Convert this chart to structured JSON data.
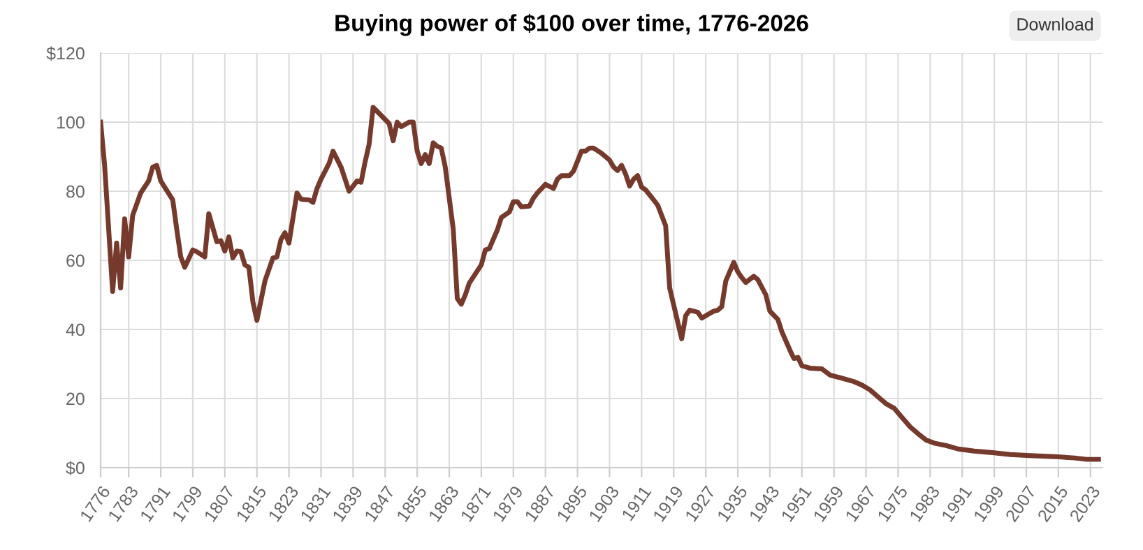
{
  "chart_data": {
    "type": "line",
    "title": "Buying power of $100 over time, 1776-2026",
    "annotations": [
      "Download"
    ],
    "x": [
      1776,
      1777,
      1779,
      1780,
      1781,
      1782,
      1783,
      1784,
      1786,
      1788,
      1789,
      1790,
      1791,
      1794,
      1795,
      1796,
      1797,
      1799,
      1800,
      1802,
      1803,
      1805,
      1806,
      1807,
      1808,
      1809,
      1810,
      1811,
      1812,
      1813,
      1814,
      1815,
      1817,
      1819,
      1820,
      1821,
      1822,
      1823,
      1825,
      1826,
      1828,
      1829,
      1830,
      1831,
      1833,
      1834,
      1836,
      1838,
      1840,
      1841,
      1842,
      1843,
      1844,
      1848,
      1849,
      1850,
      1851,
      1853,
      1854,
      1855,
      1856,
      1857,
      1858,
      1859,
      1860,
      1861,
      1862,
      1864,
      1865,
      1866,
      1867,
      1868,
      1871,
      1872,
      1873,
      1875,
      1876,
      1878,
      1879,
      1880,
      1881,
      1883,
      1884,
      1885,
      1887,
      1889,
      1890,
      1891,
      1893,
      1894,
      1896,
      1897,
      1898,
      1899,
      1901,
      1903,
      1904,
      1905,
      1906,
      1907,
      1908,
      1909,
      1910,
      1911,
      1912,
      1914,
      1915,
      1917,
      1918,
      1921,
      1922,
      1923,
      1925,
      1926,
      1929,
      1930,
      1931,
      1932,
      1934,
      1935,
      1936,
      1937,
      1939,
      1940,
      1942,
      1943,
      1945,
      1946,
      1948,
      1949,
      1950,
      1951,
      1953,
      1956,
      1958,
      1961,
      1964,
      1966,
      1968,
      1970,
      1972,
      1974,
      1976,
      1978,
      1980,
      1982,
      1984,
      1987,
      1990,
      1994,
      1999,
      2003,
      2008,
      2014,
      2019,
      2022,
      2025
    ],
    "series": [
      {
        "color": "#763a2d",
        "values": [
          100,
          87.5,
          51,
          65,
          52,
          72,
          61,
          73,
          79.5,
          83,
          87,
          87.5,
          83,
          77.5,
          69,
          61,
          58,
          63,
          62.5,
          61,
          73.5,
          65.4,
          65.7,
          62.7,
          66.8,
          60.7,
          62.7,
          62.5,
          58.7,
          58,
          48,
          42.6,
          54,
          60.7,
          61,
          66,
          68,
          65,
          79.5,
          77.7,
          77.5,
          76.8,
          80.8,
          83.5,
          88,
          91.6,
          87,
          80,
          83,
          82.6,
          88.5,
          93.6,
          104.3,
          99.6,
          94.6,
          100,
          98.7,
          100,
          100,
          91.6,
          88,
          90.6,
          88,
          94,
          93,
          92.5,
          87,
          69,
          49,
          47.3,
          50,
          53.4,
          58.7,
          63,
          63.4,
          68.8,
          72.4,
          74,
          77,
          77,
          75.5,
          75.7,
          78,
          79.5,
          82,
          80.8,
          83.5,
          84.5,
          84.5,
          85.8,
          91.6,
          91.6,
          92.5,
          92.5,
          91,
          89,
          87,
          86,
          87.5,
          85,
          81.5,
          83.5,
          84.5,
          81.2,
          80.4,
          77.5,
          76,
          70,
          52,
          37.3,
          44,
          45.6,
          45,
          43.3,
          45.3,
          45.6,
          46.6,
          54,
          59.4,
          56.7,
          55,
          53.6,
          55.4,
          54.4,
          50,
          45.3,
          42.9,
          39.3,
          34,
          31.6,
          31.9,
          29.5,
          28.8,
          28.6,
          26.8,
          25.9,
          24.9,
          23.9,
          22.5,
          20.5,
          18.5,
          17.2,
          14.5,
          11.8,
          9.8,
          8,
          7.1,
          6.4,
          5.4,
          4.8,
          4.3,
          3.8,
          3.5,
          3.2,
          2.8,
          2.4,
          2.4
        ]
      }
    ],
    "xlim": [
      1776,
      2026
    ],
    "xticks": [
      1776,
      1783,
      1791,
      1799,
      1807,
      1815,
      1823,
      1831,
      1839,
      1847,
      1855,
      1863,
      1871,
      1879,
      1887,
      1895,
      1903,
      1911,
      1919,
      1927,
      1935,
      1943,
      1951,
      1959,
      1967,
      1975,
      1983,
      1991,
      1999,
      2007,
      2015,
      2023
    ],
    "ylim": [
      0,
      120
    ],
    "yticks": [
      {
        "value": 0,
        "label": "$0"
      },
      20,
      40,
      60,
      80,
      100,
      {
        "value": 120,
        "label": "$120"
      }
    ],
    "grid": true,
    "legend": false,
    "marker": "none",
    "line_style": "solid"
  }
}
